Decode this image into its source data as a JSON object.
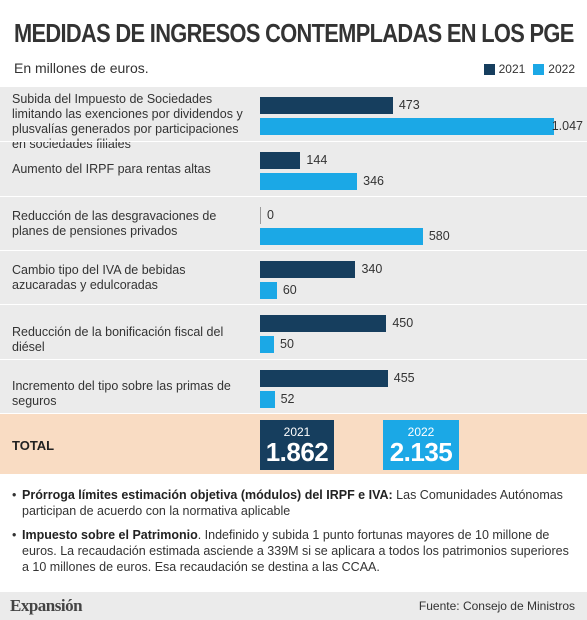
{
  "header": {
    "title": "MEDIDAS DE INGRESOS CONTEMPLADAS EN LOS PGE",
    "subtitle": "En millones de euros."
  },
  "colors": {
    "series_2021": "#163e5e",
    "series_2022": "#1ba8e6",
    "panel": "#ebebeb",
    "total_bg": "#f9dcc3"
  },
  "chart_data": {
    "type": "bar",
    "orientation": "horizontal",
    "categories": [
      "Subida del Impuesto de Sociedades limitando las exenciones por dividendos y plusvalías generados por participaciones en sociedades filiales",
      "Aumento del IRPF para rentas altas",
      "Reducción de las desgravaciones de planes de pensiones privados",
      "Cambio tipo del IVA de bebidas azucaradas y edulcoradas",
      "Reducción de la bonificación fiscal del diésel",
      "Incremento del tipo sobre las primas de seguros"
    ],
    "series": [
      {
        "name": "2021",
        "values": [
          473,
          144,
          0,
          340,
          450,
          455
        ],
        "labels": [
          "473",
          "144",
          "0",
          "340",
          "450",
          "455"
        ]
      },
      {
        "name": "2022",
        "values": [
          1047,
          346,
          580,
          60,
          50,
          52
        ],
        "labels": [
          "1.047",
          "346",
          "580",
          "60",
          "50",
          "52"
        ]
      }
    ],
    "xlim": [
      0,
      1047
    ],
    "legend": "top-right",
    "grid": false
  },
  "total": {
    "label": "TOTAL",
    "items": [
      {
        "year": "2021",
        "value": "1.862"
      },
      {
        "year": "2022",
        "value": "2.135"
      }
    ]
  },
  "notes": [
    {
      "bold": "Prórroga límites estimación objetiva (módulos) del IRPF e IVA:",
      "text": " Las Comunidades Autónomas participan de acuerdo con la normativa aplicable"
    },
    {
      "bold": "Impuesto sobre el Patrimonio",
      "text": ". Indefinido y subida 1 punto fortunas mayores de 10 millone de euros. La recaudación estimada asciende a 339M si se aplicara a todos los patrimonios superiores a 10 millones de euros. Esa recaudación se destina a las CCAA."
    }
  ],
  "footer": {
    "brand": "Expansión",
    "source": "Fuente: Consejo de Ministros"
  }
}
